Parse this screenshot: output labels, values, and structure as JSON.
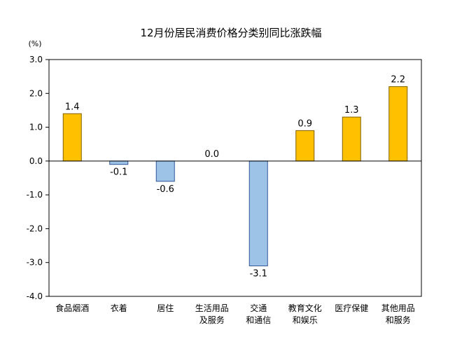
{
  "chart_data": {
    "type": "bar",
    "title": "12月份居民消费价格分类别同比涨跌幅",
    "unit": "(%)",
    "ylim": [
      -4.0,
      3.0
    ],
    "yticks": [
      "3.0",
      "2.0",
      "1.0",
      "0.0",
      "-1.0",
      "-2.0",
      "-3.0",
      "-4.0"
    ],
    "categories": [
      [
        "食品烟酒"
      ],
      [
        "衣着"
      ],
      [
        "居住"
      ],
      [
        "生活用品",
        "及服务"
      ],
      [
        "交通",
        "和通信"
      ],
      [
        "教育文化",
        "和娱乐"
      ],
      [
        "医疗保健"
      ],
      [
        "其他用品",
        "和服务"
      ]
    ],
    "values": [
      1.4,
      -0.1,
      -0.6,
      0.0,
      -3.1,
      0.9,
      1.3,
      2.2
    ],
    "labels": [
      "1.4",
      "-0.1",
      "-0.6",
      "0.0",
      "-3.1",
      "0.9",
      "1.3",
      "2.2"
    ],
    "grid": false,
    "legend": "none",
    "colors": {
      "positive_fill": "#FFC000",
      "positive_stroke": "#7F6000",
      "negative_fill": "#9DC3E6",
      "negative_stroke": "#2F5597",
      "axis": "#000000"
    }
  }
}
